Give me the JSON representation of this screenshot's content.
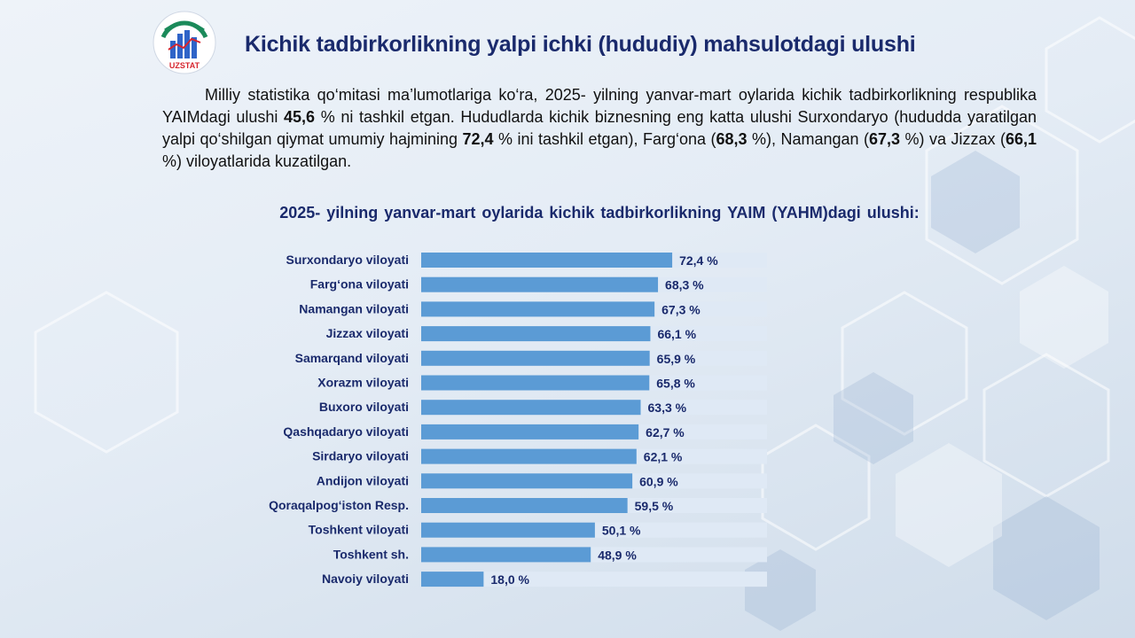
{
  "logo": {
    "text": "UZSTAT",
    "icon": "uzstat-logo-icon",
    "colors": {
      "ring": "#1b8a5a",
      "bars": "#2f64c8",
      "text": "#d6262f"
    }
  },
  "header": {
    "title": "Kichik tadbirkorlikning yalpi ichki (hududiy) mahsulotdagi ulushi"
  },
  "intro": {
    "p1": "Milliy statistika qo‘mitasi ma’lumotlariga ko‘ra, 2025- yilning yanvar-mart oylarida kichik tadbirkorlikning respublika YAIMdagi ulushi ",
    "v1": "45,6",
    "p2": " % ni tashkil etgan. Hududlarda kichik biznesning eng katta ulushi Surxondaryo (hududda yaratilgan yalpi qo‘shilgan qiymat umumiy hajmining ",
    "v2": "72,4",
    "p3": " % ini tashkil etgan),  Farg‘ona (",
    "v3": "68,3",
    "p4": " %), Namangan  (",
    "v4": "67,3",
    "p5": " %) va Jizzax  (",
    "v5": "66,1",
    "p6": " %) viloyatlarida kuzatilgan."
  },
  "chart_data": {
    "type": "bar",
    "orientation": "horizontal",
    "title": "2025- yilning  yanvar-mart oylarida   kichik tadbirkorlikning  YAIM  (YAHM)dagi  ulushi:",
    "categories": [
      "Surxondaryo viloyati",
      "Farg‘ona viloyati",
      "Namangan viloyati",
      "Jizzax viloyati",
      "Samarqand viloyati",
      "Xorazm viloyati",
      "Buxoro viloyati",
      "Qashqadaryo viloyati",
      "Sirdaryo viloyati",
      "Andijon viloyati",
      "Qoraqalpog‘iston Resp.",
      "Toshkent viloyati",
      "Toshkent sh.",
      "Navoiy viloyati"
    ],
    "values": [
      72.4,
      68.3,
      67.3,
      66.1,
      65.9,
      65.8,
      63.3,
      62.7,
      62.1,
      60.9,
      59.5,
      50.1,
      48.9,
      18.0
    ],
    "value_labels": [
      "72,4 %",
      "68,3 %",
      "67,3 %",
      "66,1 %",
      "65,9 %",
      "65,8 %",
      "63,3 %",
      "62,7 %",
      "62,1 %",
      "60,9 %",
      "59,5 %",
      "50,1 %",
      "48,9 %",
      "18,0 %"
    ],
    "xlim": [
      0,
      100
    ],
    "grid": false,
    "colors": {
      "bar": "#5b9bd5",
      "track": "#dfe9f5",
      "label": "#1a2a6c"
    }
  }
}
